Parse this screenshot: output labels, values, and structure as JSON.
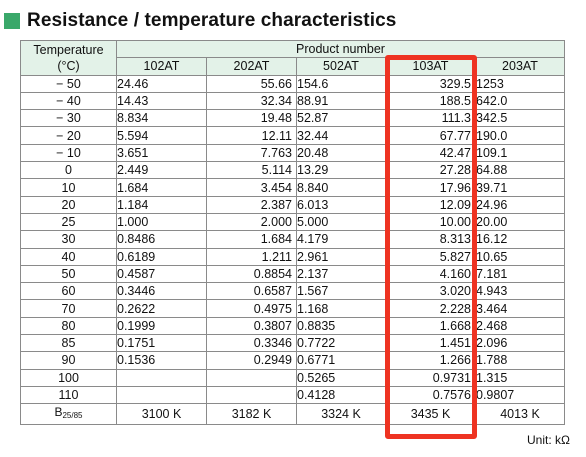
{
  "title": "Resistance / temperature characteristics",
  "header": {
    "temperature_label": "Temperature",
    "temperature_unit": "(°C)",
    "product_label": "Product number",
    "models": [
      "102AT",
      "202AT",
      "502AT",
      "103AT",
      "203AT"
    ]
  },
  "rows": [
    {
      "temp": "− 50",
      "values": [
        "24.46",
        "55.66",
        "154.6",
        "329.5",
        "1253"
      ]
    },
    {
      "temp": "− 40",
      "values": [
        "14.43",
        "32.34",
        "88.91",
        "188.5",
        "642.0"
      ]
    },
    {
      "temp": "− 30",
      "values": [
        "8.834",
        "19.48",
        "52.87",
        "111.3",
        "342.5"
      ]
    },
    {
      "temp": "− 20",
      "values": [
        "5.594",
        "12.11",
        "32.44",
        "67.77",
        "190.0"
      ]
    },
    {
      "temp": "− 10",
      "values": [
        "3.651",
        "7.763",
        "20.48",
        "42.47",
        "109.1"
      ]
    },
    {
      "temp": "0",
      "values": [
        "2.449",
        "5.114",
        "13.29",
        "27.28",
        "64.88"
      ]
    },
    {
      "temp": "10",
      "values": [
        "1.684",
        "3.454",
        "8.840",
        "17.96",
        "39.71"
      ]
    },
    {
      "temp": "20",
      "values": [
        "1.184",
        "2.387",
        "6.013",
        "12.09",
        "24.96"
      ]
    },
    {
      "temp": "25",
      "values": [
        "1.000",
        "2.000",
        "5.000",
        "10.00",
        "20.00"
      ]
    },
    {
      "temp": "30",
      "values": [
        "0.8486",
        "1.684",
        "4.179",
        "8.313",
        "16.12"
      ]
    },
    {
      "temp": "40",
      "values": [
        "0.6189",
        "1.211",
        "2.961",
        "5.827",
        "10.65"
      ]
    },
    {
      "temp": "50",
      "values": [
        "0.4587",
        "0.8854",
        "2.137",
        "4.160",
        "7.181"
      ]
    },
    {
      "temp": "60",
      "values": [
        "0.3446",
        "0.6587",
        "1.567",
        "3.020",
        "4.943"
      ]
    },
    {
      "temp": "70",
      "values": [
        "0.2622",
        "0.4975",
        "1.168",
        "2.228",
        "3.464"
      ]
    },
    {
      "temp": "80",
      "values": [
        "0.1999",
        "0.3807",
        "0.8835",
        "1.668",
        "2.468"
      ]
    },
    {
      "temp": "85",
      "values": [
        "0.1751",
        "0.3346",
        "0.7722",
        "1.451",
        "2.096"
      ]
    },
    {
      "temp": "90",
      "values": [
        "0.1536",
        "0.2949",
        "0.6771",
        "1.266",
        "1.788"
      ]
    },
    {
      "temp": "100",
      "values": [
        "",
        "",
        "0.5265",
        "0.9731",
        "1.315"
      ]
    },
    {
      "temp": "110",
      "values": [
        "",
        "",
        "0.4128",
        "0.7576",
        "0.9807"
      ]
    }
  ],
  "b_row": {
    "label": "B",
    "label_sub": "25/85",
    "values": [
      "3100 K",
      "3182 K",
      "3324 K",
      "3435 K",
      "4013 K"
    ]
  },
  "unit": "Unit: kΩ",
  "colors": {
    "accent_square": "#3aa86a",
    "header_bg": "#e3f2e8",
    "highlight_border": "#ee3322"
  }
}
